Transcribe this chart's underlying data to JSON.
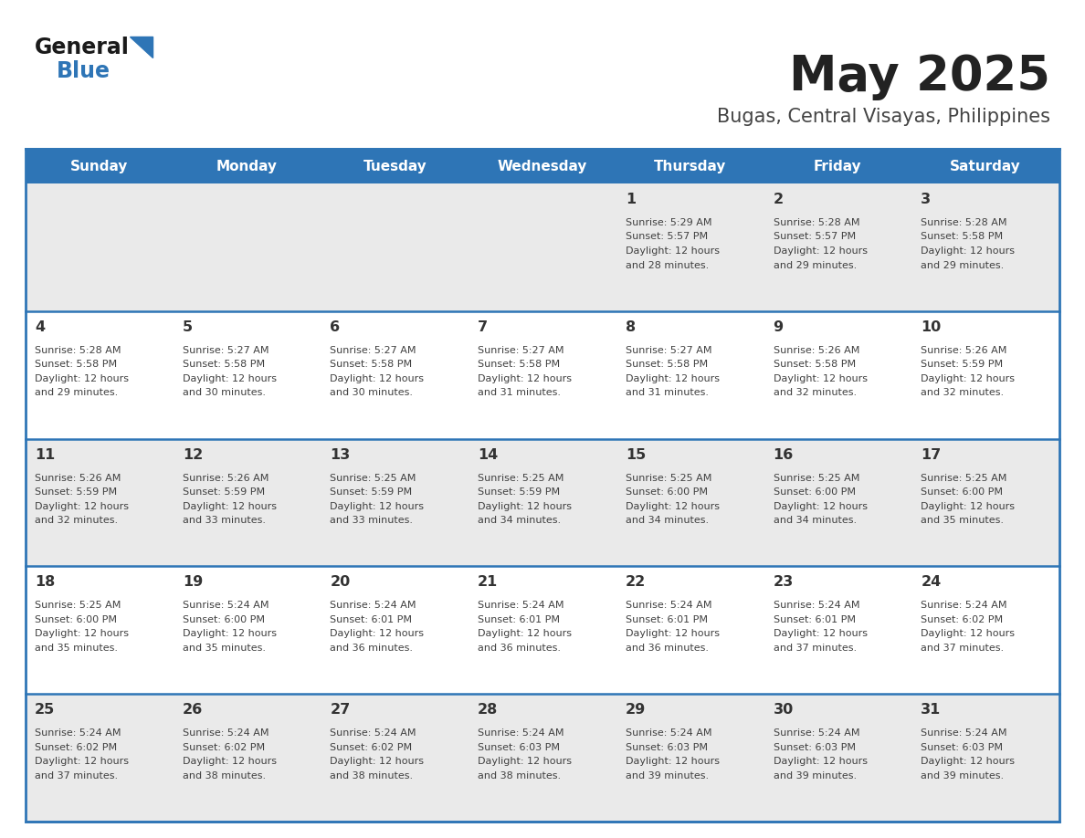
{
  "title": "May 2025",
  "subtitle": "Bugas, Central Visayas, Philippines",
  "days_of_week": [
    "Sunday",
    "Monday",
    "Tuesday",
    "Wednesday",
    "Thursday",
    "Friday",
    "Saturday"
  ],
  "header_bg": "#2E75B6",
  "header_text": "#FFFFFF",
  "row_bg_odd": "#EAEAEA",
  "row_bg_even": "#FFFFFF",
  "cell_border": "#2E75B6",
  "day_number_color": "#333333",
  "info_text_color": "#404040",
  "title_color": "#222222",
  "subtitle_color": "#444444",
  "logo_general_color": "#1a1a1a",
  "logo_blue_color": "#2E75B6",
  "logo_triangle_color": "#2E75B6",
  "calendar_data": [
    [
      {
        "day": "",
        "sunrise": "",
        "sunset": "",
        "daylight": ""
      },
      {
        "day": "",
        "sunrise": "",
        "sunset": "",
        "daylight": ""
      },
      {
        "day": "",
        "sunrise": "",
        "sunset": "",
        "daylight": ""
      },
      {
        "day": "",
        "sunrise": "",
        "sunset": "",
        "daylight": ""
      },
      {
        "day": "1",
        "sunrise": "5:29 AM",
        "sunset": "5:57 PM",
        "daylight": "12 hours and 28 minutes."
      },
      {
        "day": "2",
        "sunrise": "5:28 AM",
        "sunset": "5:57 PM",
        "daylight": "12 hours and 29 minutes."
      },
      {
        "day": "3",
        "sunrise": "5:28 AM",
        "sunset": "5:58 PM",
        "daylight": "12 hours and 29 minutes."
      }
    ],
    [
      {
        "day": "4",
        "sunrise": "5:28 AM",
        "sunset": "5:58 PM",
        "daylight": "12 hours and 29 minutes."
      },
      {
        "day": "5",
        "sunrise": "5:27 AM",
        "sunset": "5:58 PM",
        "daylight": "12 hours and 30 minutes."
      },
      {
        "day": "6",
        "sunrise": "5:27 AM",
        "sunset": "5:58 PM",
        "daylight": "12 hours and 30 minutes."
      },
      {
        "day": "7",
        "sunrise": "5:27 AM",
        "sunset": "5:58 PM",
        "daylight": "12 hours and 31 minutes."
      },
      {
        "day": "8",
        "sunrise": "5:27 AM",
        "sunset": "5:58 PM",
        "daylight": "12 hours and 31 minutes."
      },
      {
        "day": "9",
        "sunrise": "5:26 AM",
        "sunset": "5:58 PM",
        "daylight": "12 hours and 32 minutes."
      },
      {
        "day": "10",
        "sunrise": "5:26 AM",
        "sunset": "5:59 PM",
        "daylight": "12 hours and 32 minutes."
      }
    ],
    [
      {
        "day": "11",
        "sunrise": "5:26 AM",
        "sunset": "5:59 PM",
        "daylight": "12 hours and 32 minutes."
      },
      {
        "day": "12",
        "sunrise": "5:26 AM",
        "sunset": "5:59 PM",
        "daylight": "12 hours and 33 minutes."
      },
      {
        "day": "13",
        "sunrise": "5:25 AM",
        "sunset": "5:59 PM",
        "daylight": "12 hours and 33 minutes."
      },
      {
        "day": "14",
        "sunrise": "5:25 AM",
        "sunset": "5:59 PM",
        "daylight": "12 hours and 34 minutes."
      },
      {
        "day": "15",
        "sunrise": "5:25 AM",
        "sunset": "6:00 PM",
        "daylight": "12 hours and 34 minutes."
      },
      {
        "day": "16",
        "sunrise": "5:25 AM",
        "sunset": "6:00 PM",
        "daylight": "12 hours and 34 minutes."
      },
      {
        "day": "17",
        "sunrise": "5:25 AM",
        "sunset": "6:00 PM",
        "daylight": "12 hours and 35 minutes."
      }
    ],
    [
      {
        "day": "18",
        "sunrise": "5:25 AM",
        "sunset": "6:00 PM",
        "daylight": "12 hours and 35 minutes."
      },
      {
        "day": "19",
        "sunrise": "5:24 AM",
        "sunset": "6:00 PM",
        "daylight": "12 hours and 35 minutes."
      },
      {
        "day": "20",
        "sunrise": "5:24 AM",
        "sunset": "6:01 PM",
        "daylight": "12 hours and 36 minutes."
      },
      {
        "day": "21",
        "sunrise": "5:24 AM",
        "sunset": "6:01 PM",
        "daylight": "12 hours and 36 minutes."
      },
      {
        "day": "22",
        "sunrise": "5:24 AM",
        "sunset": "6:01 PM",
        "daylight": "12 hours and 36 minutes."
      },
      {
        "day": "23",
        "sunrise": "5:24 AM",
        "sunset": "6:01 PM",
        "daylight": "12 hours and 37 minutes."
      },
      {
        "day": "24",
        "sunrise": "5:24 AM",
        "sunset": "6:02 PM",
        "daylight": "12 hours and 37 minutes."
      }
    ],
    [
      {
        "day": "25",
        "sunrise": "5:24 AM",
        "sunset": "6:02 PM",
        "daylight": "12 hours and 37 minutes."
      },
      {
        "day": "26",
        "sunrise": "5:24 AM",
        "sunset": "6:02 PM",
        "daylight": "12 hours and 38 minutes."
      },
      {
        "day": "27",
        "sunrise": "5:24 AM",
        "sunset": "6:02 PM",
        "daylight": "12 hours and 38 minutes."
      },
      {
        "day": "28",
        "sunrise": "5:24 AM",
        "sunset": "6:03 PM",
        "daylight": "12 hours and 38 minutes."
      },
      {
        "day": "29",
        "sunrise": "5:24 AM",
        "sunset": "6:03 PM",
        "daylight": "12 hours and 39 minutes."
      },
      {
        "day": "30",
        "sunrise": "5:24 AM",
        "sunset": "6:03 PM",
        "daylight": "12 hours and 39 minutes."
      },
      {
        "day": "31",
        "sunrise": "5:24 AM",
        "sunset": "6:03 PM",
        "daylight": "12 hours and 39 minutes."
      }
    ]
  ]
}
